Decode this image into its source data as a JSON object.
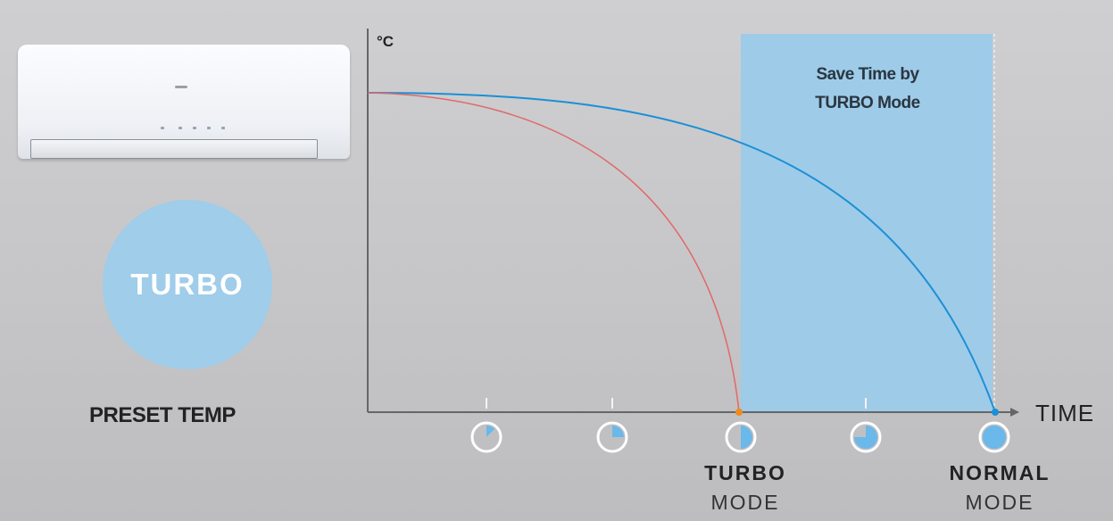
{
  "left_panel": {
    "turbo_badge": "TURBO",
    "preset_label": "PRESET TEMP"
  },
  "chart": {
    "y_unit": "°C",
    "x_label": "TIME",
    "highlight_text_line1": "Save Time by",
    "highlight_text_line2": "TURBO Mode",
    "markers": [
      {
        "label_bold": "",
        "label": "",
        "fill_fraction": 0.125
      },
      {
        "label_bold": "",
        "label": "",
        "fill_fraction": 0.25
      },
      {
        "label_bold": "TURBO",
        "label": "MODE",
        "fill_fraction": 0.5
      },
      {
        "label_bold": "",
        "label": "",
        "fill_fraction": 0.75
      },
      {
        "label_bold": "NORMAL",
        "label": "MODE",
        "fill_fraction": 1.0
      }
    ]
  },
  "colors": {
    "turbo_curve": "#e0696a",
    "normal_curve": "#1b8fd6",
    "highlight_band": "#9ecbe8",
    "turbo_circle": "#9fcdea",
    "turbo_end_dot": "#f08a1c",
    "normal_end_dot": "#1b8fd6"
  }
}
